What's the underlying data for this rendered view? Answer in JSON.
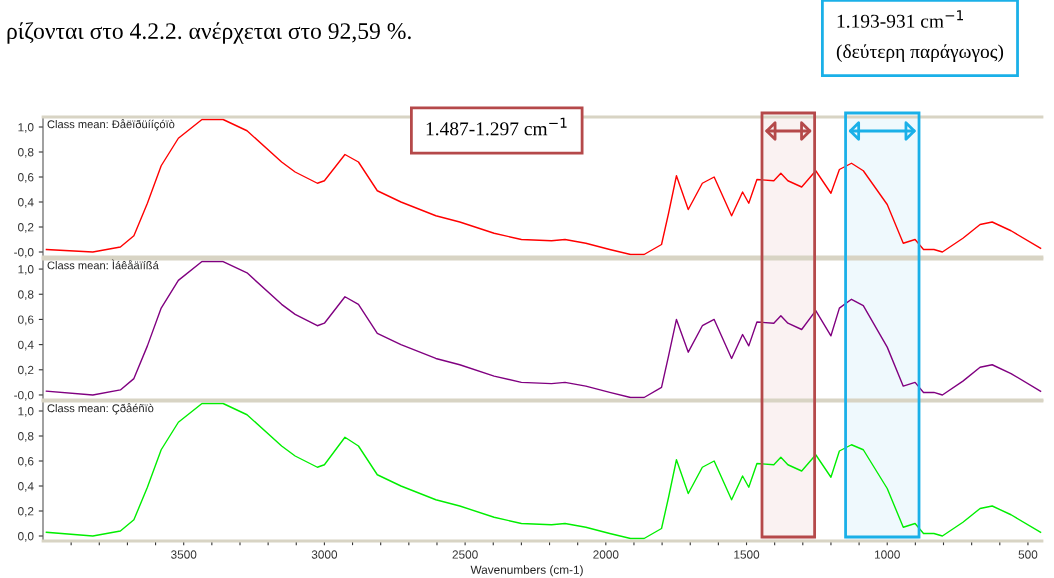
{
  "chart_data": [
    {
      "type": "line",
      "title": "Class mean: Ðåëïðüííçóïò",
      "annotations": [
        "ρίζονται στο 4.2.2. ανέρχεται στο 92,59 %.",
        "1.487-1.297 cm$^{−1}$",
        "1.193-931 cm$^{−1}$\n(δεύτερη παράγωγος)"
      ],
      "x": [
        3988,
        3823,
        3725,
        3677,
        3629,
        3580,
        3519,
        3435,
        3360,
        3275,
        3152,
        3104,
        3025,
        3000,
        2927,
        2879,
        2812,
        2728,
        2604,
        2519,
        2397,
        2300,
        2193,
        2145,
        2071,
        1986,
        1912,
        1864,
        1802,
        1777,
        1749,
        1707,
        1657,
        1615,
        1553,
        1514,
        1492,
        1463,
        1403,
        1378,
        1353,
        1304,
        1254,
        1200,
        1170,
        1127,
        1085,
        1000,
        943,
        901,
        871,
        834,
        804,
        731,
        670,
        627,
        560,
        455
      ],
      "series": [
        {
          "color": "#ff0000",
          "values": [
            0.02,
            0.0,
            0.04,
            0.13,
            0.39,
            0.69,
            0.91,
            1.06,
            1.06,
            0.97,
            0.72,
            0.64,
            0.55,
            0.57,
            0.78,
            0.72,
            0.49,
            0.4,
            0.29,
            0.24,
            0.15,
            0.1,
            0.09,
            0.1,
            0.07,
            0.02,
            -0.02,
            -0.02,
            0.06,
            0.31,
            0.61,
            0.34,
            0.55,
            0.6,
            0.29,
            0.48,
            0.39,
            0.58,
            0.57,
            0.63,
            0.57,
            0.52,
            0.65,
            0.47,
            0.66,
            0.71,
            0.65,
            0.38,
            0.07,
            0.1,
            0.02,
            0.02,
            0.0,
            0.11,
            0.22,
            0.24,
            0.17,
            0.03
          ]
        }
      ],
      "bands": [
        {
          "axis": "x",
          "from": 1445,
          "to": 1258,
          "color": "#b5494a"
        },
        {
          "axis": "x",
          "from": 1148,
          "to": 887,
          "color": "#1ab0e8"
        }
      ],
      "xlim": [
        4000,
        450
      ],
      "ylim": [
        -0.04,
        1.08
      ],
      "yticks": [
        {
          "value": 0,
          "label": "-0,0"
        },
        {
          "value": 0.2,
          "label": "0,2"
        },
        {
          "value": 0.4,
          "label": "0,4"
        },
        {
          "value": 0.6,
          "label": "0,6"
        },
        {
          "value": 0.8,
          "label": "0,8"
        },
        {
          "value": 1.0,
          "label": "1,0"
        }
      ],
      "tick_labels": "y"
    },
    {
      "type": "line",
      "title": "Class mean: Ìáêåäïíßá",
      "bands": [
        {
          "axis": "x",
          "from": 1445,
          "to": 1258,
          "color": "#b5494a"
        },
        {
          "axis": "x",
          "from": 1148,
          "to": 887,
          "color": "#1ab0e8"
        }
      ],
      "x": [
        3988,
        3823,
        3725,
        3677,
        3629,
        3580,
        3519,
        3435,
        3360,
        3275,
        3152,
        3104,
        3025,
        3000,
        2927,
        2879,
        2812,
        2728,
        2604,
        2519,
        2397,
        2300,
        2193,
        2145,
        2071,
        1986,
        1912,
        1864,
        1802,
        1777,
        1749,
        1707,
        1657,
        1615,
        1553,
        1514,
        1492,
        1463,
        1403,
        1378,
        1353,
        1304,
        1254,
        1200,
        1170,
        1127,
        1085,
        1000,
        943,
        901,
        871,
        834,
        804,
        731,
        670,
        627,
        560,
        455
      ],
      "series": [
        {
          "color": "#800080",
          "values": [
            0.03,
            0.0,
            0.04,
            0.13,
            0.39,
            0.69,
            0.91,
            1.06,
            1.06,
            0.97,
            0.72,
            0.64,
            0.55,
            0.57,
            0.78,
            0.72,
            0.49,
            0.4,
            0.29,
            0.24,
            0.15,
            0.1,
            0.09,
            0.1,
            0.07,
            0.02,
            -0.02,
            -0.02,
            0.06,
            0.31,
            0.6,
            0.34,
            0.55,
            0.6,
            0.29,
            0.48,
            0.39,
            0.58,
            0.57,
            0.63,
            0.57,
            0.52,
            0.67,
            0.47,
            0.69,
            0.76,
            0.71,
            0.38,
            0.07,
            0.1,
            0.02,
            0.02,
            0.0,
            0.11,
            0.22,
            0.24,
            0.17,
            0.03
          ]
        }
      ],
      "xlim": [
        4000,
        450
      ],
      "ylim": [
        -0.04,
        1.08
      ],
      "yticks": [
        {
          "value": 0,
          "label": "-0,0"
        },
        {
          "value": 0.2,
          "label": "0,2"
        },
        {
          "value": 0.4,
          "label": "0,4"
        },
        {
          "value": 0.6,
          "label": "0,6"
        },
        {
          "value": 0.8,
          "label": "0,8"
        },
        {
          "value": 1.0,
          "label": "1,0"
        }
      ],
      "tick_labels": "y"
    },
    {
      "type": "line",
      "title": "Class mean: Çðåéñïò",
      "xlabel": "Wavenumbers (cm-1)",
      "bands": [
        {
          "axis": "x",
          "from": 1445,
          "to": 1258,
          "color": "#b5494a"
        },
        {
          "axis": "x",
          "from": 1148,
          "to": 887,
          "color": "#1ab0e8"
        }
      ],
      "x": [
        3988,
        3823,
        3725,
        3677,
        3629,
        3580,
        3519,
        3435,
        3360,
        3275,
        3152,
        3104,
        3025,
        3000,
        2927,
        2879,
        2812,
        2728,
        2604,
        2519,
        2397,
        2300,
        2193,
        2145,
        2071,
        1986,
        1912,
        1864,
        1802,
        1777,
        1749,
        1707,
        1657,
        1615,
        1553,
        1514,
        1492,
        1463,
        1403,
        1378,
        1353,
        1304,
        1254,
        1200,
        1170,
        1127,
        1085,
        1000,
        943,
        901,
        871,
        834,
        804,
        731,
        670,
        627,
        560,
        455
      ],
      "series": [
        {
          "color": "#00ee00",
          "values": [
            0.03,
            0.0,
            0.04,
            0.13,
            0.39,
            0.69,
            0.91,
            1.06,
            1.06,
            0.97,
            0.72,
            0.64,
            0.55,
            0.57,
            0.79,
            0.72,
            0.49,
            0.4,
            0.29,
            0.24,
            0.15,
            0.1,
            0.09,
            0.1,
            0.07,
            0.02,
            -0.02,
            -0.02,
            0.06,
            0.31,
            0.61,
            0.34,
            0.55,
            0.6,
            0.29,
            0.48,
            0.39,
            0.58,
            0.57,
            0.63,
            0.57,
            0.52,
            0.65,
            0.47,
            0.68,
            0.73,
            0.69,
            0.38,
            0.07,
            0.1,
            0.02,
            0.02,
            0.0,
            0.11,
            0.22,
            0.24,
            0.17,
            0.03
          ]
        }
      ],
      "xlim": [
        4000,
        450
      ],
      "ylim": [
        -0.04,
        1.08
      ],
      "xticks": [
        {
          "value": 3900,
          "label": null
        },
        {
          "value": 3800,
          "label": null
        },
        {
          "value": 3700,
          "label": null
        },
        {
          "value": 3600,
          "label": null
        },
        3500,
        {
          "value": 3400,
          "label": null
        },
        {
          "value": 3300,
          "label": null
        },
        {
          "value": 3200,
          "label": null
        },
        {
          "value": 3100,
          "label": null
        },
        3000,
        {
          "value": 2900,
          "label": null
        },
        {
          "value": 2800,
          "label": null
        },
        {
          "value": 2700,
          "label": null
        },
        {
          "value": 2600,
          "label": null
        },
        2500,
        {
          "value": 2400,
          "label": null
        },
        {
          "value": 2300,
          "label": null
        },
        {
          "value": 2200,
          "label": null
        },
        {
          "value": 2100,
          "label": null
        },
        2000,
        {
          "value": 1900,
          "label": null
        },
        {
          "value": 1800,
          "label": null
        },
        {
          "value": 1700,
          "label": null
        },
        {
          "value": 1600,
          "label": null
        },
        1500,
        {
          "value": 1400,
          "label": null
        },
        {
          "value": 1300,
          "label": null
        },
        {
          "value": 1200,
          "label": null
        },
        {
          "value": 1100,
          "label": null
        },
        1000,
        {
          "value": 900,
          "label": null
        },
        {
          "value": 800,
          "label": null
        },
        {
          "value": 700,
          "label": null
        },
        {
          "value": 600,
          "label": null
        },
        500
      ],
      "yticks": [
        {
          "value": 0,
          "label": "0,0"
        },
        {
          "value": 0.2,
          "label": "0,2"
        },
        {
          "value": 0.4,
          "label": "0,4"
        },
        {
          "value": 0.6,
          "label": "0,6"
        },
        {
          "value": 0.8,
          "label": "0,8"
        },
        {
          "value": 1.0,
          "label": "1,0"
        }
      ]
    }
  ]
}
